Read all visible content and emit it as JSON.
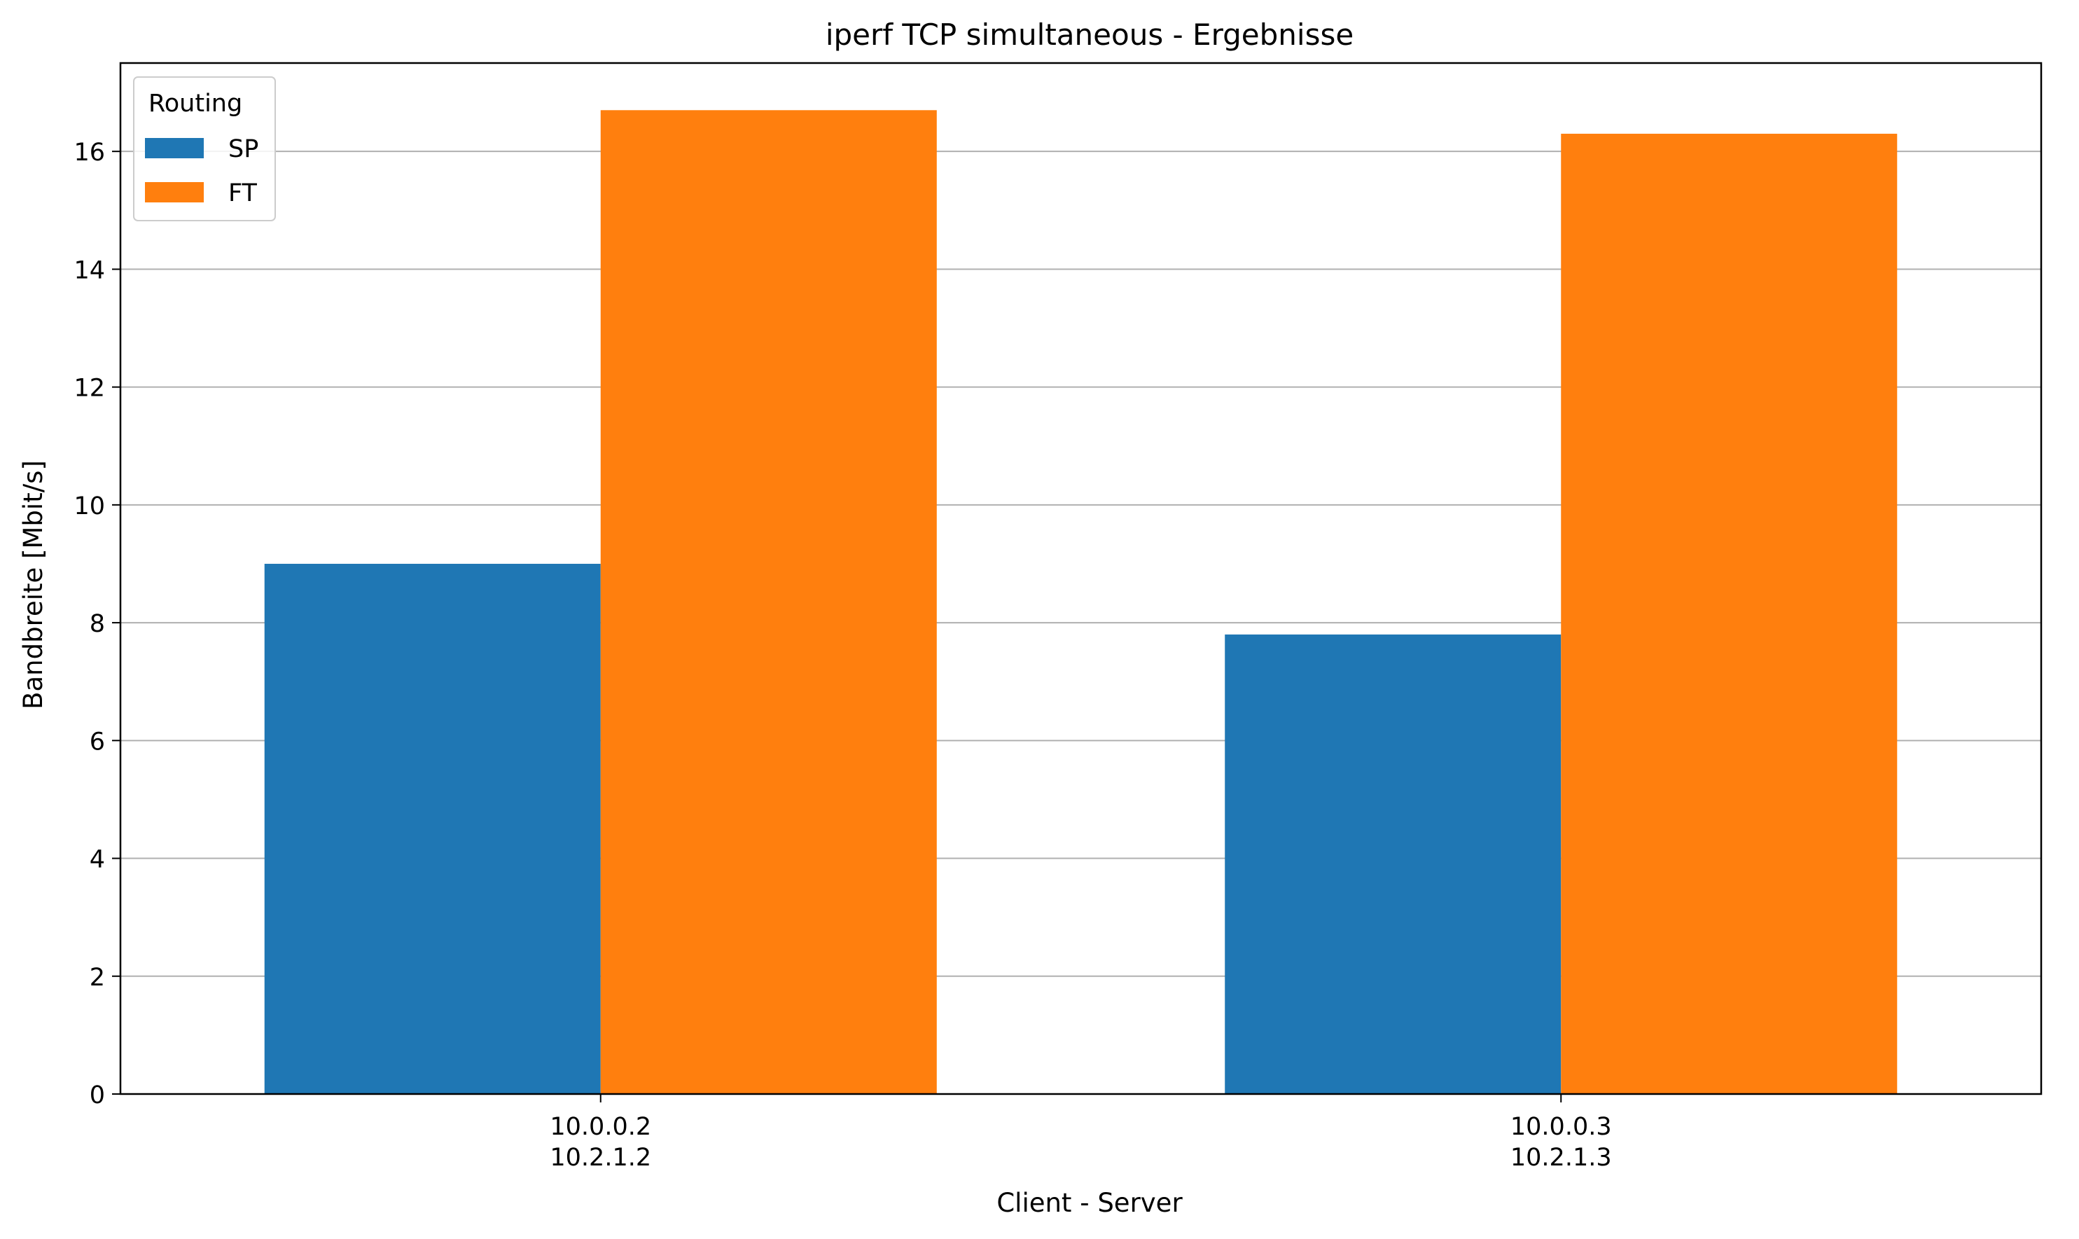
{
  "chart_data": {
    "type": "bar",
    "title": "iperf TCP simultaneous - Ergebnisse",
    "xlabel": "Client - Server",
    "ylabel": "Bandbreite [Mbit/s]",
    "categories": [
      [
        "10.0.0.2",
        "10.2.1.2"
      ],
      [
        "10.0.0.3",
        "10.2.1.3"
      ]
    ],
    "series": [
      {
        "name": "SP",
        "values": [
          9.0,
          7.8
        ],
        "color": "#1f77b4"
      },
      {
        "name": "FT",
        "values": [
          16.7,
          16.3
        ],
        "color": "#ff7f0e"
      }
    ],
    "ylim": [
      0,
      17.5
    ],
    "yticks": [
      0,
      2,
      4,
      6,
      8,
      10,
      12,
      14,
      16
    ],
    "grid": "y",
    "legend": {
      "title": "Routing",
      "placement": "top-left"
    }
  }
}
